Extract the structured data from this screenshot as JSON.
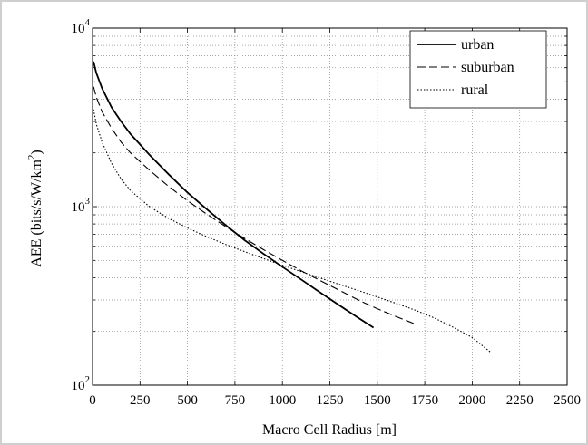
{
  "chart_data": {
    "type": "line",
    "title": "",
    "xlabel": "Macro Cell Radius [m]",
    "ylabel_main": "AEE (bits/s/W/km",
    "ylabel_sup": "2",
    "ylabel_close": ")",
    "xlim": [
      0,
      2500
    ],
    "ylim": [
      100,
      10000
    ],
    "yscale": "log",
    "grid": true,
    "legend_position": "top-right",
    "x_ticks": [
      "0",
      "250",
      "500",
      "750",
      "1000",
      "1250",
      "1500",
      "1750",
      "2000",
      "2250",
      "2500"
    ],
    "y_ticks": [
      {
        "base": "10",
        "exp": "2"
      },
      {
        "base": "10",
        "exp": "3"
      },
      {
        "base": "10",
        "exp": "4"
      }
    ],
    "series": [
      {
        "name": "urban",
        "style": "solid",
        "points": [
          [
            5,
            6500
          ],
          [
            20,
            5600
          ],
          [
            50,
            4600
          ],
          [
            100,
            3600
          ],
          [
            150,
            3000
          ],
          [
            200,
            2550
          ],
          [
            300,
            1950
          ],
          [
            400,
            1520
          ],
          [
            500,
            1200
          ],
          [
            600,
            970
          ],
          [
            700,
            790
          ],
          [
            800,
            650
          ],
          [
            900,
            545
          ],
          [
            1000,
            460
          ],
          [
            1100,
            390
          ],
          [
            1200,
            330
          ],
          [
            1300,
            280
          ],
          [
            1400,
            238
          ],
          [
            1480,
            210
          ]
        ]
      },
      {
        "name": "suburban",
        "style": "dashed",
        "points": [
          [
            5,
            4700
          ],
          [
            20,
            4100
          ],
          [
            50,
            3400
          ],
          [
            100,
            2750
          ],
          [
            150,
            2300
          ],
          [
            200,
            2000
          ],
          [
            300,
            1600
          ],
          [
            400,
            1300
          ],
          [
            500,
            1080
          ],
          [
            600,
            910
          ],
          [
            700,
            775
          ],
          [
            800,
            665
          ],
          [
            900,
            575
          ],
          [
            1000,
            500
          ],
          [
            1100,
            437
          ],
          [
            1200,
            385
          ],
          [
            1300,
            340
          ],
          [
            1400,
            300
          ],
          [
            1500,
            268
          ],
          [
            1600,
            242
          ],
          [
            1700,
            220
          ]
        ]
      },
      {
        "name": "rural",
        "style": "dotted",
        "points": [
          [
            5,
            3500
          ],
          [
            20,
            2900
          ],
          [
            50,
            2300
          ],
          [
            100,
            1750
          ],
          [
            150,
            1430
          ],
          [
            200,
            1230
          ],
          [
            300,
            1000
          ],
          [
            400,
            860
          ],
          [
            500,
            760
          ],
          [
            600,
            680
          ],
          [
            700,
            615
          ],
          [
            800,
            560
          ],
          [
            900,
            512
          ],
          [
            1000,
            470
          ],
          [
            1100,
            432
          ],
          [
            1200,
            398
          ],
          [
            1300,
            367
          ],
          [
            1400,
            339
          ],
          [
            1500,
            312
          ],
          [
            1600,
            287
          ],
          [
            1700,
            263
          ],
          [
            1800,
            238
          ],
          [
            1900,
            211
          ],
          [
            2000,
            185
          ],
          [
            2100,
            152
          ]
        ]
      }
    ]
  }
}
